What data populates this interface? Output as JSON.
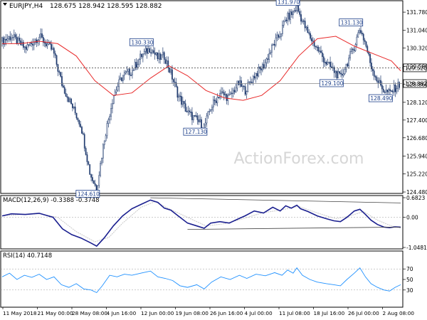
{
  "header": {
    "symbol": "EURJPY,H4",
    "ohlc": "128.675 128.942 128.595 128.882"
  },
  "watermark": "ActionForex.com",
  "colors": {
    "background": "#ffffff",
    "frame": "#000000",
    "candle": "#1f3a6e",
    "ma": "#e82a2a",
    "macd_line": "#1a1f8f",
    "macd_signal": "#c8c8c8",
    "rsi": "#1e90ff",
    "watermark": "#d6d6d6",
    "level_line": "#555555"
  },
  "chart_data": [
    {
      "type": "candlestick",
      "title": "EURJPY,H4",
      "ylim": [
        124.48,
        132.1
      ],
      "y_ticks": [
        124.48,
        125.22,
        125.94,
        126.68,
        127.4,
        128.12,
        128.86,
        129.58,
        130.32,
        131.04,
        131.78
      ],
      "x_tick_labels": [
        "11 May 2018",
        "21 May 00:00",
        "28 May 08:00",
        "4 Jun 16:00",
        "12 Jun 00:00",
        "19 Jun 08:00",
        "26 Jun 16:00",
        "4 Jul 00:00",
        "11 Jul 08:00",
        "18 Jul 16:00",
        "26 Jul 00:00",
        "2 Aug 08:00"
      ],
      "n_bars": 300,
      "price_path": [
        [
          0,
          130.6
        ],
        [
          10,
          130.8
        ],
        [
          25,
          130.3
        ],
        [
          40,
          130.8
        ],
        [
          55,
          130.2
        ],
        [
          65,
          128.8
        ],
        [
          75,
          128.0
        ],
        [
          85,
          127.2
        ],
        [
          95,
          125.2
        ],
        [
          102,
          124.61
        ],
        [
          110,
          126.6
        ],
        [
          120,
          128.4
        ],
        [
          130,
          129.2
        ],
        [
          140,
          129.4
        ],
        [
          150,
          130.0
        ],
        [
          160,
          130.33
        ],
        [
          168,
          129.9
        ],
        [
          175,
          130.0
        ],
        [
          182,
          129.3
        ],
        [
          190,
          128.4
        ],
        [
          200,
          127.7
        ],
        [
          210,
          127.4
        ],
        [
          218,
          127.13
        ],
        [
          225,
          127.9
        ],
        [
          235,
          128.5
        ],
        [
          245,
          128.3
        ],
        [
          255,
          128.9
        ],
        [
          262,
          128.6
        ],
        [
          272,
          129.2
        ],
        [
          282,
          129.6
        ],
        [
          292,
          130.4
        ],
        [
          300,
          130.9
        ],
        [
          306,
          131.5
        ],
        [
          312,
          131.7
        ],
        [
          318,
          131.97
        ],
        [
          322,
          131.6
        ],
        [
          330,
          130.9
        ],
        [
          340,
          130.3
        ],
        [
          350,
          129.7
        ],
        [
          358,
          129.4
        ],
        [
          365,
          129.1
        ],
        [
          372,
          129.7
        ],
        [
          380,
          130.4
        ],
        [
          386,
          131.13
        ],
        [
          392,
          130.5
        ],
        [
          398,
          129.6
        ],
        [
          405,
          129.0
        ],
        [
          412,
          128.6
        ],
        [
          418,
          128.49
        ],
        [
          424,
          128.7
        ],
        [
          430,
          128.88
        ]
      ],
      "ma_path": [
        [
          0,
          130.5
        ],
        [
          20,
          130.5
        ],
        [
          40,
          130.6
        ],
        [
          60,
          130.5
        ],
        [
          80,
          130.0
        ],
        [
          100,
          129.0
        ],
        [
          120,
          128.4
        ],
        [
          140,
          128.5
        ],
        [
          160,
          129.1
        ],
        [
          180,
          129.6
        ],
        [
          200,
          129.2
        ],
        [
          220,
          128.6
        ],
        [
          240,
          128.3
        ],
        [
          260,
          128.2
        ],
        [
          280,
          128.4
        ],
        [
          300,
          129.0
        ],
        [
          320,
          130.0
        ],
        [
          340,
          130.7
        ],
        [
          360,
          130.8
        ],
        [
          380,
          130.4
        ],
        [
          400,
          130.1
        ],
        [
          420,
          129.8
        ],
        [
          430,
          129.4
        ]
      ],
      "annotations": [
        {
          "label": "124.610",
          "x": 102,
          "y": 124.61
        },
        {
          "label": "130.330",
          "x": 160,
          "y": 130.33
        },
        {
          "label": "127.130",
          "x": 218,
          "y": 127.13
        },
        {
          "label": "131.970",
          "x": 318,
          "y": 131.97
        },
        {
          "label": "131.130",
          "x": 386,
          "y": 131.13
        },
        {
          "label": "129.100",
          "x": 365,
          "y": 129.1
        },
        {
          "label": "128.490",
          "x": 418,
          "y": 128.49
        }
      ],
      "horizontal_levels": [
        {
          "value": 129.52,
          "label": "129.520",
          "style": "dashed"
        },
        {
          "value": 128.882,
          "label": "128.882",
          "style": "solid"
        }
      ]
    },
    {
      "type": "line",
      "title": "MACD(12,26,9) -0.3388 -0.3748",
      "ylim": [
        -1.0481,
        0.6823
      ],
      "y_ticks": [
        0.6823,
        0.0,
        -1.0481
      ],
      "macd_path": [
        [
          0,
          0.05
        ],
        [
          10,
          0.12
        ],
        [
          25,
          0.1
        ],
        [
          40,
          0.14
        ],
        [
          55,
          0.0
        ],
        [
          65,
          -0.4
        ],
        [
          75,
          -0.6
        ],
        [
          85,
          -0.72
        ],
        [
          95,
          -0.88
        ],
        [
          102,
          -1.0
        ],
        [
          110,
          -0.72
        ],
        [
          120,
          -0.3
        ],
        [
          130,
          0.05
        ],
        [
          140,
          0.3
        ],
        [
          150,
          0.45
        ],
        [
          160,
          0.6
        ],
        [
          168,
          0.52
        ],
        [
          175,
          0.32
        ],
        [
          182,
          0.25
        ],
        [
          190,
          0.05
        ],
        [
          200,
          -0.2
        ],
        [
          210,
          -0.3
        ],
        [
          218,
          -0.38
        ],
        [
          225,
          -0.2
        ],
        [
          235,
          -0.15
        ],
        [
          245,
          -0.2
        ],
        [
          255,
          -0.05
        ],
        [
          262,
          0.05
        ],
        [
          272,
          0.22
        ],
        [
          282,
          0.15
        ],
        [
          292,
          0.35
        ],
        [
          300,
          0.22
        ],
        [
          306,
          0.4
        ],
        [
          312,
          0.32
        ],
        [
          318,
          0.42
        ],
        [
          322,
          0.3
        ],
        [
          330,
          0.2
        ],
        [
          340,
          0.05
        ],
        [
          350,
          -0.05
        ],
        [
          358,
          -0.12
        ],
        [
          365,
          -0.15
        ],
        [
          372,
          0.0
        ],
        [
          380,
          0.22
        ],
        [
          386,
          0.28
        ],
        [
          392,
          0.1
        ],
        [
          398,
          -0.1
        ],
        [
          405,
          -0.25
        ],
        [
          412,
          -0.34
        ],
        [
          418,
          -0.36
        ],
        [
          424,
          -0.33
        ],
        [
          430,
          -0.34
        ]
      ],
      "signal_path": [
        [
          0,
          0.05
        ],
        [
          20,
          0.1
        ],
        [
          40,
          0.12
        ],
        [
          60,
          0.0
        ],
        [
          80,
          -0.5
        ],
        [
          100,
          -0.85
        ],
        [
          115,
          -0.7
        ],
        [
          130,
          -0.2
        ],
        [
          150,
          0.35
        ],
        [
          165,
          0.55
        ],
        [
          180,
          0.3
        ],
        [
          200,
          0.0
        ],
        [
          220,
          -0.3
        ],
        [
          240,
          -0.22
        ],
        [
          260,
          -0.05
        ],
        [
          280,
          0.15
        ],
        [
          300,
          0.25
        ],
        [
          320,
          0.38
        ],
        [
          340,
          0.15
        ],
        [
          360,
          -0.05
        ],
        [
          375,
          0.05
        ],
        [
          390,
          0.2
        ],
        [
          405,
          -0.1
        ],
        [
          420,
          -0.3
        ],
        [
          430,
          -0.37
        ]
      ],
      "trendlines": [
        {
          "from": [
            160,
            0.68
          ],
          "to": [
            430,
            0.5
          ]
        },
        {
          "from": [
            200,
            -0.42
          ],
          "to": [
            430,
            -0.34
          ]
        }
      ]
    },
    {
      "type": "line",
      "title": "RSI(14) 40.7148",
      "ylim": [
        0,
        100
      ],
      "y_ticks": [
        70,
        50,
        30
      ],
      "levels": [
        70,
        30
      ],
      "rsi_path": [
        [
          0,
          55
        ],
        [
          8,
          62
        ],
        [
          16,
          50
        ],
        [
          24,
          58
        ],
        [
          32,
          54
        ],
        [
          40,
          60
        ],
        [
          48,
          50
        ],
        [
          56,
          55
        ],
        [
          64,
          40
        ],
        [
          72,
          35
        ],
        [
          80,
          42
        ],
        [
          88,
          32
        ],
        [
          96,
          30
        ],
        [
          102,
          25
        ],
        [
          108,
          38
        ],
        [
          116,
          58
        ],
        [
          124,
          55
        ],
        [
          132,
          60
        ],
        [
          140,
          58
        ],
        [
          150,
          62
        ],
        [
          160,
          66
        ],
        [
          168,
          55
        ],
        [
          176,
          52
        ],
        [
          184,
          48
        ],
        [
          192,
          38
        ],
        [
          200,
          35
        ],
        [
          210,
          40
        ],
        [
          218,
          32
        ],
        [
          226,
          45
        ],
        [
          236,
          55
        ],
        [
          246,
          50
        ],
        [
          256,
          58
        ],
        [
          264,
          52
        ],
        [
          274,
          60
        ],
        [
          284,
          57
        ],
        [
          294,
          63
        ],
        [
          302,
          58
        ],
        [
          308,
          68
        ],
        [
          314,
          62
        ],
        [
          318,
          72
        ],
        [
          324,
          58
        ],
        [
          332,
          50
        ],
        [
          340,
          45
        ],
        [
          350,
          42
        ],
        [
          358,
          40
        ],
        [
          365,
          38
        ],
        [
          372,
          50
        ],
        [
          380,
          62
        ],
        [
          386,
          72
        ],
        [
          392,
          55
        ],
        [
          398,
          42
        ],
        [
          405,
          35
        ],
        [
          412,
          30
        ],
        [
          418,
          28
        ],
        [
          424,
          35
        ],
        [
          430,
          40
        ]
      ]
    }
  ]
}
